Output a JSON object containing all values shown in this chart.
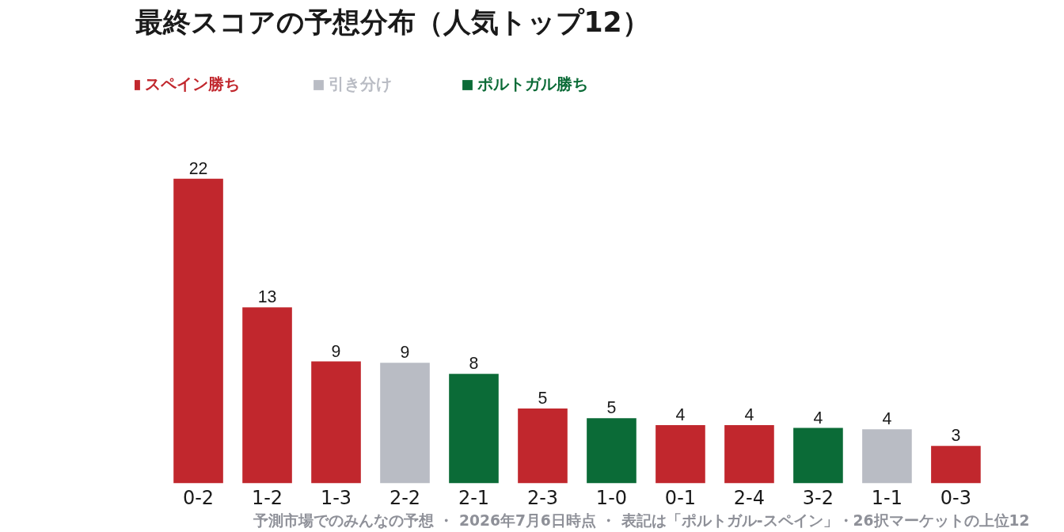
{
  "chart_data": {
    "type": "bar",
    "title": "最終スコアの予想分布（人気トップ12）",
    "categories": [
      "0-2",
      "1-2",
      "1-3",
      "2-2",
      "2-1",
      "2-3",
      "1-0",
      "0-1",
      "2-4",
      "3-2",
      "1-1",
      "0-3"
    ],
    "legend": "top left",
    "tick_labels": "x",
    "series": [
      {
        "name": "スペイン勝ち",
        "color": "#c1272d",
        "values": [
          22,
          12.7,
          8.8,
          null,
          null,
          5.4,
          null,
          4.2,
          4.2,
          null,
          null,
          2.7
        ],
        "value_labels": [
          "22",
          "13",
          "9",
          null,
          null,
          "5",
          null,
          "4",
          "4",
          null,
          null,
          "3"
        ]
      },
      {
        "name": "引き分け",
        "color": "#b9bcc4",
        "values": [
          null,
          null,
          null,
          8.7,
          null,
          null,
          null,
          null,
          null,
          null,
          3.9,
          null
        ],
        "value_labels": [
          null,
          null,
          null,
          "9",
          null,
          null,
          null,
          null,
          null,
          null,
          "4",
          null
        ]
      },
      {
        "name": "ポルトガル勝ち",
        "color": "#0b6b37",
        "values": [
          null,
          null,
          null,
          null,
          7.9,
          null,
          4.7,
          null,
          null,
          4.0,
          null,
          null
        ],
        "value_labels": [
          null,
          null,
          null,
          null,
          "8",
          null,
          "5",
          null,
          null,
          "4",
          null,
          null
        ]
      }
    ],
    "annotations": [
      "予測市場でのみんなの予想 ・ 2026年7月6日時点 ・ 表記は「ポルトガル-スペイン」・26択マーケットの上位12"
    ]
  }
}
